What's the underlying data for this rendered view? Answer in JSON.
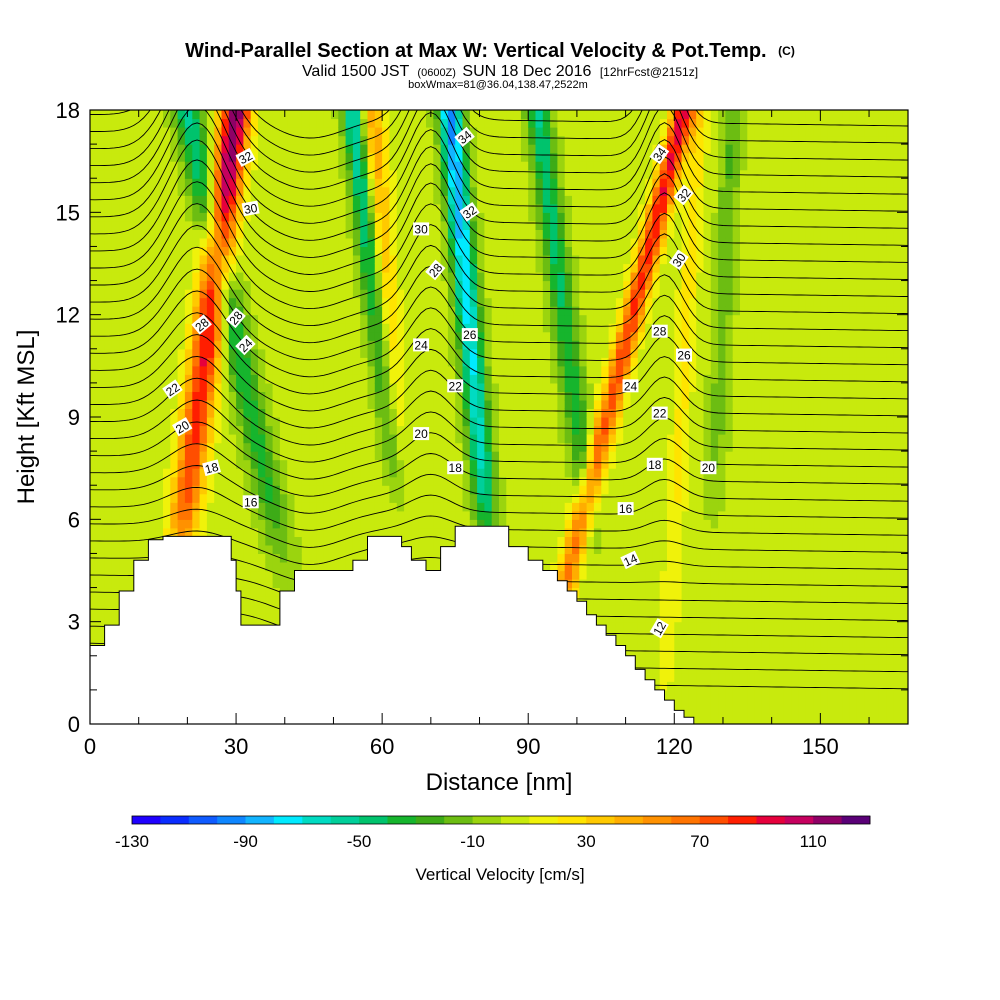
{
  "chart_data": {
    "type": "heatmap",
    "title": "Wind-Parallel Section at Max W: Vertical Velocity & Pot.Temp.",
    "title_mark": "(C)",
    "subtitle_parts": [
      "Valid 1500 JST",
      "(0600Z)",
      "SUN 18 Dec 2016",
      "[12hrFcst@2151z]"
    ],
    "subtitle2": "boxWmax=81@36.04,138.47,2522m",
    "xlabel": "Distance [nm]",
    "ylabel": "Height [Kft MSL]",
    "xlim": [
      0,
      168
    ],
    "ylim": [
      0,
      18
    ],
    "x_ticks": [
      0,
      30,
      60,
      90,
      120,
      150
    ],
    "x_tick_labels": [
      "0",
      "30",
      "60",
      "90",
      "120",
      "150"
    ],
    "y_ticks": [
      0,
      3,
      6,
      9,
      12,
      15,
      18
    ],
    "y_tick_labels": [
      "0",
      "3",
      "6",
      "9",
      "12",
      "15",
      "18"
    ],
    "colorbar": {
      "label": "Vertical Velocity [cm/s]",
      "min": -130,
      "max": 120,
      "step": 10,
      "tick_values": [
        -130,
        -90,
        -50,
        -10,
        30,
        70,
        110
      ],
      "tick_labels": [
        "-130",
        "-90",
        "-50",
        "-10",
        "30",
        "70",
        "110"
      ],
      "colors": [
        "#1f00ff",
        "#0a2cff",
        "#0f5bff",
        "#0e86ff",
        "#12b4ff",
        "#00eaff",
        "#00dbc2",
        "#00cf9a",
        "#00c36d",
        "#16b52d",
        "#3dab17",
        "#6cbd12",
        "#9bd40e",
        "#c8ea0d",
        "#f0f20a",
        "#ffe400",
        "#ffc900",
        "#ffad00",
        "#ff9100",
        "#ff7400",
        "#ff4e00",
        "#ff1e00",
        "#e6003c",
        "#c6005f",
        "#8f0066",
        "#5a0077"
      ]
    },
    "updraft_bands": [
      {
        "x_bottom": 18,
        "x_top": 30,
        "h0": 4.5,
        "width": 3.2,
        "peak": 116
      },
      {
        "x_bottom": 64,
        "x_top": 58,
        "h0": 5.0,
        "width": 2.6,
        "peak": 45
      },
      {
        "x_bottom": 94,
        "x_top": 122,
        "h0": 2.0,
        "width": 2.4,
        "peak": 95
      },
      {
        "x_bottom": 118,
        "x_top": 125,
        "h0": 0.5,
        "width": 2.0,
        "peak": 25
      }
    ],
    "downdraft_bands": [
      {
        "x_bottom": 40,
        "x_top": 20,
        "h0": 4.5,
        "width": 3.0,
        "peak": -55
      },
      {
        "x_bottom": 64,
        "x_top": 54,
        "h0": 5.5,
        "width": 2.2,
        "peak": -70
      },
      {
        "x_bottom": 82,
        "x_top": 74,
        "h0": 5.0,
        "width": 2.4,
        "peak": -100
      },
      {
        "x_bottom": 103,
        "x_top": 92,
        "h0": 5.5,
        "width": 2.4,
        "peak": -55
      },
      {
        "x_bottom": 128,
        "x_top": 132,
        "h0": 6.0,
        "width": 2.0,
        "peak": -25
      }
    ],
    "theta_contours": [
      12,
      14,
      16,
      18,
      20,
      22,
      24,
      26,
      28,
      30,
      32,
      34
    ],
    "theta_labels": [
      {
        "value": "32",
        "x": 32,
        "y": 16.6,
        "angle": -28
      },
      {
        "value": "30",
        "x": 33,
        "y": 15.1,
        "angle": -10
      },
      {
        "value": "28",
        "x": 23,
        "y": 11.7,
        "angle": -40
      },
      {
        "value": "28",
        "x": 30,
        "y": 11.9,
        "angle": -50
      },
      {
        "value": "24",
        "x": 32,
        "y": 11.1,
        "angle": -45
      },
      {
        "value": "22",
        "x": 17,
        "y": 9.8,
        "angle": -35
      },
      {
        "value": "20",
        "x": 19,
        "y": 8.7,
        "angle": -30
      },
      {
        "value": "18",
        "x": 25,
        "y": 7.5,
        "angle": -15
      },
      {
        "value": "16",
        "x": 33,
        "y": 6.5,
        "angle": 0
      },
      {
        "value": "34",
        "x": 77,
        "y": 17.2,
        "angle": -40
      },
      {
        "value": "32",
        "x": 78,
        "y": 15.0,
        "angle": -35
      },
      {
        "value": "30",
        "x": 68,
        "y": 14.5,
        "angle": 0
      },
      {
        "value": "28",
        "x": 71,
        "y": 13.3,
        "angle": -50
      },
      {
        "value": "26",
        "x": 78,
        "y": 11.4,
        "angle": 0
      },
      {
        "value": "24",
        "x": 68,
        "y": 11.1,
        "angle": 0
      },
      {
        "value": "22",
        "x": 75,
        "y": 9.9,
        "angle": 0
      },
      {
        "value": "20",
        "x": 68,
        "y": 8.5,
        "angle": 0
      },
      {
        "value": "18",
        "x": 75,
        "y": 7.5,
        "angle": 0
      },
      {
        "value": "34",
        "x": 117,
        "y": 16.7,
        "angle": -55
      },
      {
        "value": "32",
        "x": 122,
        "y": 15.5,
        "angle": -50
      },
      {
        "value": "30",
        "x": 121,
        "y": 13.6,
        "angle": -55
      },
      {
        "value": "28",
        "x": 117,
        "y": 11.5,
        "angle": 0
      },
      {
        "value": "26",
        "x": 122,
        "y": 10.8,
        "angle": 0
      },
      {
        "value": "24",
        "x": 111,
        "y": 9.9,
        "angle": 0
      },
      {
        "value": "22",
        "x": 117,
        "y": 9.1,
        "angle": 0
      },
      {
        "value": "20",
        "x": 127,
        "y": 7.5,
        "angle": 0
      },
      {
        "value": "18",
        "x": 116,
        "y": 7.6,
        "angle": 0
      },
      {
        "value": "16",
        "x": 110,
        "y": 6.3,
        "angle": 0
      },
      {
        "value": "14",
        "x": 111,
        "y": 4.8,
        "angle": -25
      },
      {
        "value": "12",
        "x": 117,
        "y": 2.8,
        "angle": -60
      }
    ],
    "terrain_steps": [
      [
        0,
        2.3
      ],
      [
        3,
        2.9
      ],
      [
        6,
        3.9
      ],
      [
        9,
        4.8
      ],
      [
        12,
        5.4
      ],
      [
        15,
        5.5
      ],
      [
        27,
        5.5
      ],
      [
        29,
        4.8
      ],
      [
        30,
        3.9
      ],
      [
        31,
        2.9
      ],
      [
        37,
        2.9
      ],
      [
        39,
        3.9
      ],
      [
        42,
        4.5
      ],
      [
        51,
        4.5
      ],
      [
        54,
        4.8
      ],
      [
        57,
        5.5
      ],
      [
        63,
        5.5
      ],
      [
        64,
        5.2
      ],
      [
        66,
        4.8
      ],
      [
        69,
        4.5
      ],
      [
        72,
        5.2
      ],
      [
        75,
        5.8
      ],
      [
        84,
        5.8
      ],
      [
        86,
        5.2
      ],
      [
        90,
        4.8
      ],
      [
        93,
        4.5
      ],
      [
        96,
        4.2
      ],
      [
        98,
        3.9
      ],
      [
        100,
        3.6
      ],
      [
        102,
        3.2
      ],
      [
        104,
        2.9
      ],
      [
        106,
        2.6
      ],
      [
        108,
        2.3
      ],
      [
        110,
        2.0
      ],
      [
        112,
        1.6
      ],
      [
        114,
        1.3
      ],
      [
        116,
        1.0
      ],
      [
        118,
        0.7
      ],
      [
        120,
        0.4
      ],
      [
        122,
        0.2
      ],
      [
        124,
        0.0
      ]
    ]
  }
}
